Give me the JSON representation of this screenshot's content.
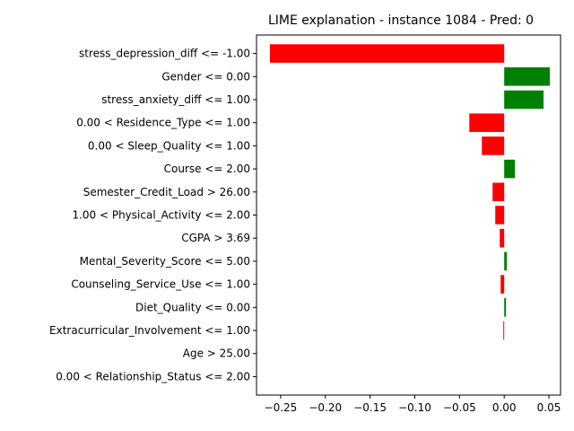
{
  "chart_data": {
    "type": "bar",
    "orientation": "horizontal",
    "title": "LIME explanation - instance 1084 - Pred: 0",
    "xlabel": "",
    "ylabel": "",
    "xlim": [
      -0.277,
      0.063
    ],
    "grid": false,
    "positive_color": "#008000",
    "negative_color": "#ff0000",
    "categories": [
      "stress_depression_diff <= -1.00",
      "Gender <= 0.00",
      "stress_anxiety_diff <= 1.00",
      "0.00 < Residence_Type <= 1.00",
      "0.00 < Sleep_Quality <= 1.00",
      "Course <= 2.00",
      "Semester_Credit_Load > 26.00",
      "1.00 < Physical_Activity <= 2.00",
      "CGPA > 3.69",
      "Mental_Severity_Score <= 5.00",
      "Counseling_Service_Use <= 1.00",
      "Diet_Quality <= 0.00",
      "Extracurricular_Involvement <= 1.00",
      "Age > 25.00",
      "0.00 < Relationship_Status <= 2.00"
    ],
    "values": [
      -0.262,
      0.051,
      0.044,
      -0.039,
      -0.025,
      0.012,
      -0.013,
      -0.01,
      -0.005,
      0.003,
      -0.004,
      0.002,
      -0.001,
      0.0,
      0.0
    ],
    "xticks": [
      -0.25,
      -0.2,
      -0.15,
      -0.1,
      -0.05,
      0.0,
      0.05
    ],
    "xtick_labels": [
      "−0.25",
      "−0.20",
      "−0.15",
      "−0.10",
      "−0.05",
      "0.00",
      "0.05"
    ]
  }
}
